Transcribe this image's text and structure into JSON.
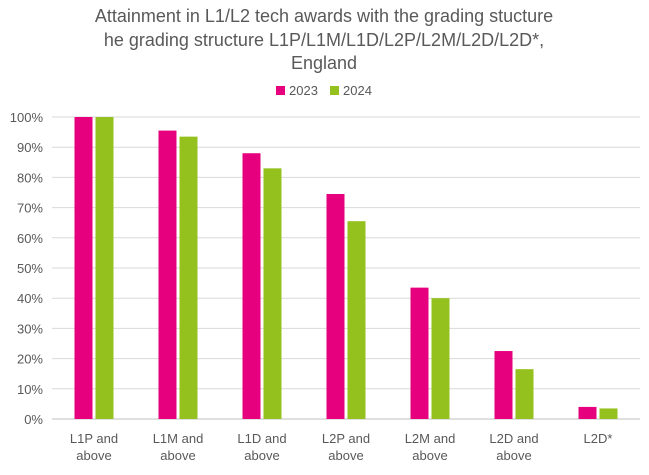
{
  "chart_data": {
    "type": "bar",
    "title_lines": [
      "Attainment in L1/L2 tech awards with the grading stucture",
      "he grading structure L1P/L1M/L1D/L2P/L2M/L2D/L2D*,",
      "England"
    ],
    "categories": [
      [
        "L1P and",
        "above"
      ],
      [
        "L1M and",
        "above"
      ],
      [
        "L1D and",
        "above"
      ],
      [
        "L2P and",
        "above"
      ],
      [
        "L2M and",
        "above"
      ],
      [
        "L2D and",
        "above"
      ],
      [
        "L2D*"
      ]
    ],
    "series": [
      {
        "name": "2023",
        "color": "#e6007e",
        "values": [
          100,
          95.5,
          88,
          74.5,
          43.5,
          22.5,
          4
        ]
      },
      {
        "name": "2024",
        "color": "#95c11f",
        "values": [
          100,
          93.5,
          83,
          65.5,
          40,
          16.5,
          3.5
        ]
      }
    ],
    "ylim": [
      0,
      100
    ],
    "yticks": [
      0,
      10,
      20,
      30,
      40,
      50,
      60,
      70,
      80,
      90,
      100
    ],
    "ytick_labels": [
      "0%",
      "10%",
      "20%",
      "30%",
      "40%",
      "50%",
      "60%",
      "70%",
      "80%",
      "90%",
      "100%"
    ],
    "grid": true,
    "legend_position": "top-center"
  }
}
